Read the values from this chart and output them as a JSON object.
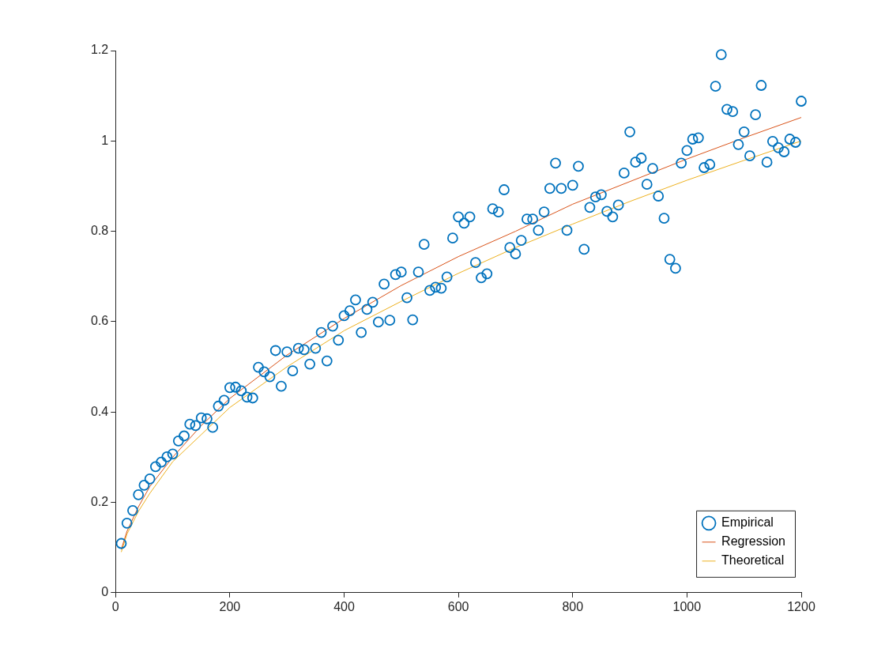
{
  "chart_data": {
    "type": "scatter",
    "xlim": [
      0,
      1200
    ],
    "xticks": [
      0,
      200,
      400,
      600,
      800,
      1000,
      1200
    ],
    "ylim": [
      0,
      1.2
    ],
    "yticks": [
      0,
      0.2,
      0.4,
      0.6,
      0.8,
      1,
      1.2
    ],
    "grid": false,
    "legend": "bottom right",
    "line_style": "solid",
    "series": [
      {
        "name": "Empirical",
        "marker": "circle",
        "color": "#0072bd",
        "x": [
          10,
          20,
          30,
          40,
          50,
          60,
          70,
          80,
          90,
          100,
          110,
          120,
          130,
          140,
          150,
          160,
          170,
          180,
          190,
          200,
          210,
          220,
          230,
          240,
          250,
          260,
          270,
          280,
          290,
          300,
          310,
          320,
          330,
          340,
          350,
          360,
          370,
          380,
          390,
          400,
          410,
          420,
          430,
          440,
          450,
          460,
          470,
          480,
          490,
          500,
          510,
          520,
          530,
          540,
          550,
          560,
          570,
          580,
          590,
          600,
          610,
          620,
          630,
          640,
          650,
          660,
          670,
          680,
          690,
          700,
          710,
          720,
          730,
          740,
          750,
          760,
          770,
          780,
          790,
          800,
          810,
          820,
          830,
          840,
          850,
          860,
          870,
          880,
          890,
          900,
          910,
          920,
          930,
          940,
          950,
          960,
          970,
          980,
          990,
          1000,
          1010,
          1020,
          1030,
          1040,
          1050,
          1060,
          1070,
          1080,
          1090,
          1100,
          1110,
          1120,
          1130,
          1140,
          1150,
          1160,
          1170,
          1180,
          1190,
          1200
        ],
        "values": [
          0.109,
          0.154,
          0.182,
          0.217,
          0.238,
          0.252,
          0.279,
          0.289,
          0.301,
          0.307,
          0.336,
          0.347,
          0.373,
          0.37,
          0.387,
          0.385,
          0.366,
          0.413,
          0.426,
          0.454,
          0.455,
          0.447,
          0.433,
          0.431,
          0.499,
          0.489,
          0.478,
          0.536,
          0.457,
          0.533,
          0.491,
          0.541,
          0.538,
          0.506,
          0.541,
          0.576,
          0.513,
          0.59,
          0.559,
          0.613,
          0.624,
          0.648,
          0.576,
          0.627,
          0.643,
          0.599,
          0.683,
          0.603,
          0.704,
          0.71,
          0.653,
          0.604,
          0.71,
          0.771,
          0.669,
          0.676,
          0.674,
          0.699,
          0.785,
          0.832,
          0.818,
          0.832,
          0.731,
          0.697,
          0.706,
          0.85,
          0.843,
          0.892,
          0.764,
          0.75,
          0.78,
          0.827,
          0.827,
          0.802,
          0.843,
          0.895,
          0.951,
          0.895,
          0.802,
          0.902,
          0.944,
          0.76,
          0.853,
          0.876,
          0.881,
          0.844,
          0.832,
          0.858,
          0.929,
          1.02,
          0.953,
          0.962,
          0.904,
          0.939,
          0.878,
          0.829,
          0.738,
          0.718,
          0.951,
          0.979,
          1.004,
          1.007,
          0.941,
          0.948,
          1.121,
          1.191,
          1.07,
          1.065,
          0.992,
          1.02,
          0.967,
          1.058,
          1.123,
          0.953,
          0.999,
          0.985,
          0.976,
          1.004,
          0.997,
          1.088
        ]
      },
      {
        "name": "Regression",
        "type": "line",
        "marker": "none",
        "color": "#d95319",
        "x": [
          10,
          20,
          40,
          60,
          100,
          150,
          200,
          300,
          400,
          500,
          600,
          700,
          800,
          900,
          1000,
          1100,
          1200
        ],
        "values": [
          0.096,
          0.136,
          0.19,
          0.235,
          0.3,
          0.37,
          0.43,
          0.526,
          0.607,
          0.68,
          0.744,
          0.8,
          0.86,
          0.91,
          0.96,
          1.007,
          1.052
        ]
      },
      {
        "name": "Theoretical",
        "type": "line",
        "marker": "none",
        "color": "#edb120",
        "x": [
          10,
          20,
          40,
          60,
          100,
          150,
          200,
          300,
          400,
          500,
          600,
          700,
          800,
          900,
          1000,
          1100,
          1200
        ],
        "values": [
          0.09,
          0.13,
          0.18,
          0.22,
          0.29,
          0.35,
          0.41,
          0.5,
          0.58,
          0.645,
          0.707,
          0.764,
          0.816,
          0.866,
          0.913,
          0.957,
          1.0
        ]
      }
    ]
  }
}
